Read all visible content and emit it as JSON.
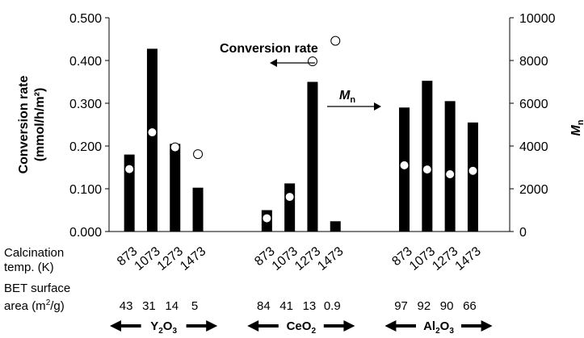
{
  "chart_data": {
    "type": "bar",
    "categories": [
      "873",
      "1073",
      "1273",
      "1473",
      "873",
      "1073",
      "1273",
      "1473",
      "873",
      "1073",
      "1273",
      "1473"
    ],
    "groups": [
      {
        "name": "Y2O3",
        "text": "Y",
        "sub": "2",
        "text2": "O",
        "sub2": "3",
        "count": 4
      },
      {
        "name": "CeO2",
        "text": "CeO",
        "sub": "2",
        "text2": "",
        "sub2": "",
        "count": 4
      },
      {
        "name": "Al2O3",
        "text": "Al",
        "sub": "2",
        "text2": "O",
        "sub2": "3",
        "count": 4
      }
    ],
    "bet_surface_area": [
      "43",
      "31",
      "14",
      "5",
      "84",
      "41",
      "13",
      "0.9",
      "97",
      "92",
      "90",
      "66"
    ],
    "series": [
      {
        "name": "Mn",
        "axis": "right",
        "kind": "bar",
        "color": "#000000",
        "values": [
          3600,
          8550,
          4100,
          2050,
          1000,
          2250,
          7000,
          480,
          5800,
          7050,
          6100,
          5100
        ]
      },
      {
        "name": "Conversion rate",
        "axis": "left",
        "kind": "marker",
        "color": "#ffffff",
        "values": [
          0.146,
          0.232,
          0.197,
          0.181,
          0.031,
          0.081,
          0.398,
          0.446,
          0.155,
          0.145,
          0.134,
          0.142
        ]
      }
    ],
    "y_left": {
      "label": "Conversion rate",
      "unit": "(mmol/h/m²)",
      "min": 0,
      "max": 0.5,
      "ticks": [
        "0.000",
        "0.100",
        "0.200",
        "0.300",
        "0.400",
        "0.500"
      ]
    },
    "y_right": {
      "label": "M",
      "sub": "n",
      "min": 0,
      "max": 10000,
      "ticks": [
        "0",
        "2000",
        "4000",
        "6000",
        "8000",
        "10000"
      ]
    },
    "row_labels": {
      "calcination_1": "Calcination",
      "calcination_2": "temp. (K)",
      "bet_1": "BET surface",
      "bet_2": "area (m",
      "bet_sup": "2",
      "bet_3": "/g)"
    },
    "annotations": {
      "conversion": "Conversion rate",
      "mn": "M",
      "mn_sub": "n"
    },
    "grid": false
  }
}
